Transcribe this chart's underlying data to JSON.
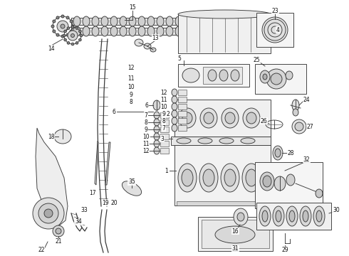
{
  "bg_color": "#ffffff",
  "line_color": "#3a3a3a",
  "label_color": "#111111",
  "figsize": [
    4.9,
    3.6
  ],
  "dpi": 100,
  "lw": 0.65,
  "label_fs": 5.5
}
